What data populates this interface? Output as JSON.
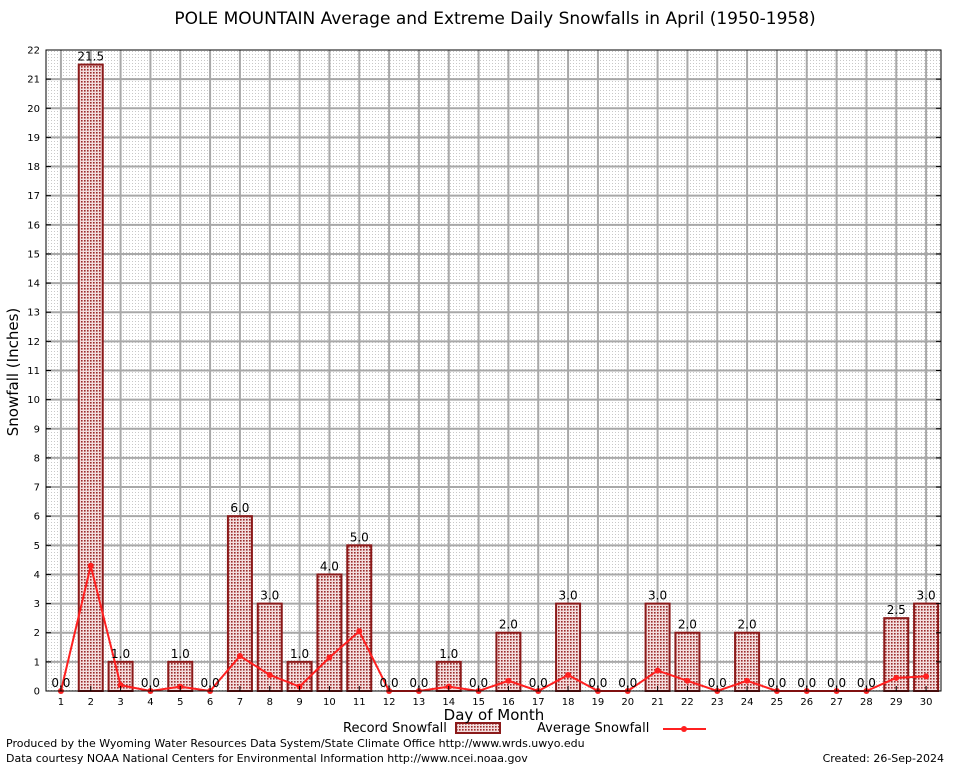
{
  "chart_data": {
    "type": "bar",
    "title": "POLE MOUNTAIN Average and Extreme Daily Snowfalls in April (1950-1958)",
    "xlabel": "Day of Month",
    "ylabel": "Snowfall (Inches)",
    "ylim": [
      0,
      22
    ],
    "grid": true,
    "legend": "bottom",
    "categories": [
      "1",
      "2",
      "3",
      "4",
      "5",
      "6",
      "7",
      "8",
      "9",
      "10",
      "11",
      "12",
      "13",
      "14",
      "15",
      "16",
      "17",
      "18",
      "19",
      "20",
      "21",
      "22",
      "23",
      "24",
      "25",
      "26",
      "27",
      "28",
      "29",
      "30"
    ],
    "series": [
      {
        "name": "Record Snowfall",
        "type": "bar",
        "values": [
          0.0,
          21.5,
          1.0,
          0.0,
          1.0,
          0.0,
          6.0,
          3.0,
          1.0,
          4.0,
          5.0,
          0.0,
          0.0,
          1.0,
          0.0,
          2.0,
          0.0,
          3.0,
          0.0,
          0.0,
          3.0,
          2.0,
          0.0,
          2.0,
          0.0,
          0.0,
          0.0,
          0.0,
          2.5,
          3.0
        ],
        "labels": [
          "0.0",
          "21.5",
          "1.0",
          "0.0",
          "1.0",
          "0.0",
          "6.0",
          "3.0",
          "1.0",
          "4.0",
          "5.0",
          "0.0",
          "0.0",
          "1.0",
          "0.0",
          "2.0",
          "0.0",
          "3.0",
          "0.0",
          "0.0",
          "3.0",
          "2.0",
          "0.0",
          "2.0",
          "0.0",
          "0.0",
          "0.0",
          "0.0",
          "2.5",
          "3.0"
        ],
        "color": "#8b1a1a"
      },
      {
        "name": "Average Snowfall",
        "type": "line",
        "values": [
          0.0,
          4.3,
          0.2,
          0.0,
          0.15,
          0.0,
          1.2,
          0.55,
          0.15,
          1.15,
          2.05,
          0.0,
          0.0,
          0.15,
          0.0,
          0.35,
          0.0,
          0.55,
          0.0,
          0.0,
          0.7,
          0.35,
          0.0,
          0.35,
          0.0,
          0.0,
          0.0,
          0.0,
          0.45,
          0.5
        ],
        "color": "#ff2020"
      }
    ],
    "yticks": [
      "0",
      "1",
      "2",
      "3",
      "4",
      "5",
      "6",
      "7",
      "8",
      "9",
      "10",
      "11",
      "12",
      "13",
      "14",
      "15",
      "16",
      "17",
      "18",
      "19",
      "20",
      "21",
      "22"
    ]
  },
  "footer": {
    "credit_line1": "Produced by the Wyoming Water Resources Data System/State Climate Office http://www.wrds.uwyo.edu",
    "credit_line2": "Data courtesy NOAA National Centers for Environmental Information http://www.ncei.noaa.gov",
    "created": "Created:  26-Sep-2024"
  }
}
